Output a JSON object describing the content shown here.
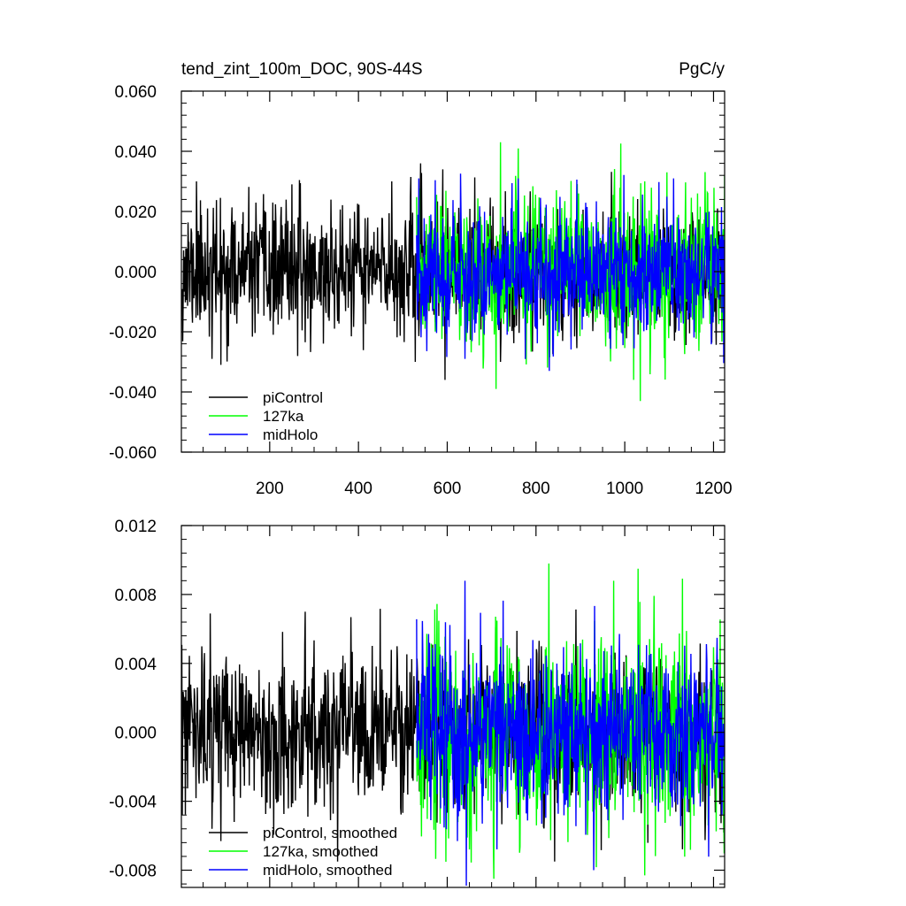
{
  "chart_data": [
    {
      "type": "line",
      "title": "tend_zint_100m_DOC, 90S-44S",
      "units": "PgC/y",
      "xlim": [
        1,
        1225
      ],
      "ylim": [
        -0.06,
        0.06
      ],
      "xticks": [
        200,
        400,
        600,
        800,
        1000,
        1200
      ],
      "xtick_labels": [
        "200",
        "400",
        "600",
        "800",
        "1000",
        "1200"
      ],
      "yticks": [
        -0.06,
        -0.04,
        -0.02,
        0,
        0.02,
        0.04,
        0.06
      ],
      "ytick_labels": [
        "-0.060",
        "-0.040",
        "-0.020",
        "0.000",
        "0.020",
        "0.040",
        "0.060"
      ],
      "legend_position": "bottom-left",
      "series": [
        {
          "name": "piControl",
          "color": "#000000",
          "x_start": 1,
          "x_end": 1225,
          "std": 0.0105,
          "clip": 0.036,
          "seed": 11,
          "spikes": [
            [
              35,
              0.03
            ],
            [
              60,
              0.021
            ],
            [
              70,
              -0.029
            ],
            [
              90,
              -0.031
            ],
            [
              250,
              0.029
            ],
            [
              475,
              0.03
            ],
            [
              528,
              -0.03
            ],
            [
              590,
              0.034
            ],
            [
              720,
              -0.03
            ]
          ]
        },
        {
          "name": "127ka",
          "color": "#00ff00",
          "x_start": 531,
          "x_end": 1225,
          "std": 0.0125,
          "clip": 0.044,
          "seed": 23,
          "spikes": [
            [
              720,
              0.043
            ],
            [
              710,
              -0.039
            ],
            [
              1020,
              -0.036
            ],
            [
              1035,
              -0.043
            ],
            [
              1225,
              0.032
            ],
            [
              1045,
              0.03
            ],
            [
              1095,
              0.033
            ]
          ]
        },
        {
          "name": "midHolo",
          "color": "#0000ff",
          "x_start": 531,
          "x_end": 1225,
          "std": 0.0105,
          "clip": 0.035,
          "seed": 37,
          "spikes": [
            [
              536,
              0.031
            ],
            [
              760,
              0.031
            ],
            [
              1110,
              0.031
            ],
            [
              830,
              -0.033
            ],
            [
              640,
              -0.029
            ]
          ]
        }
      ]
    },
    {
      "type": "line",
      "title": "",
      "xlim": [
        1,
        1225
      ],
      "ylim": [
        -0.009,
        0.012
      ],
      "xticks": [
        200,
        400,
        600,
        800,
        1000,
        1200
      ],
      "yticks": [
        -0.008,
        -0.004,
        0,
        0.004,
        0.008,
        0.012
      ],
      "ytick_labels": [
        "-0.008",
        "-0.004",
        "0.000",
        "0.004",
        "0.008",
        "0.012"
      ],
      "legend_position": "bottom-left",
      "series": [
        {
          "name": "piControl, smoothed",
          "color": "#000000",
          "x_start": 1,
          "x_end": 1225,
          "std": 0.0022,
          "clip": 0.0075,
          "seed": 53,
          "spikes": [
            [
              66,
              0.0069
            ],
            [
              280,
              0.007
            ],
            [
              70,
              -0.0056
            ],
            [
              120,
              -0.0052
            ],
            [
              286,
              -0.0049
            ]
          ]
        },
        {
          "name": "127ka, smoothed",
          "color": "#00ff00",
          "x_start": 531,
          "x_end": 1225,
          "std": 0.0028,
          "clip": 0.0098,
          "seed": 67,
          "spikes": [
            [
              1030,
              0.0095
            ],
            [
              975,
              0.0088
            ],
            [
              1225,
              0.0065
            ],
            [
              1045,
              -0.0083
            ],
            [
              705,
              -0.0085
            ],
            [
              650,
              -0.0068
            ]
          ]
        },
        {
          "name": "midHolo, smoothed",
          "color": "#0000ff",
          "x_start": 531,
          "x_end": 1225,
          "std": 0.0025,
          "clip": 0.0089,
          "seed": 79,
          "spikes": [
            [
              640,
              0.0088
            ],
            [
              643,
              -0.0089
            ],
            [
              930,
              -0.008
            ],
            [
              560,
              0.0052
            ]
          ]
        }
      ]
    }
  ]
}
